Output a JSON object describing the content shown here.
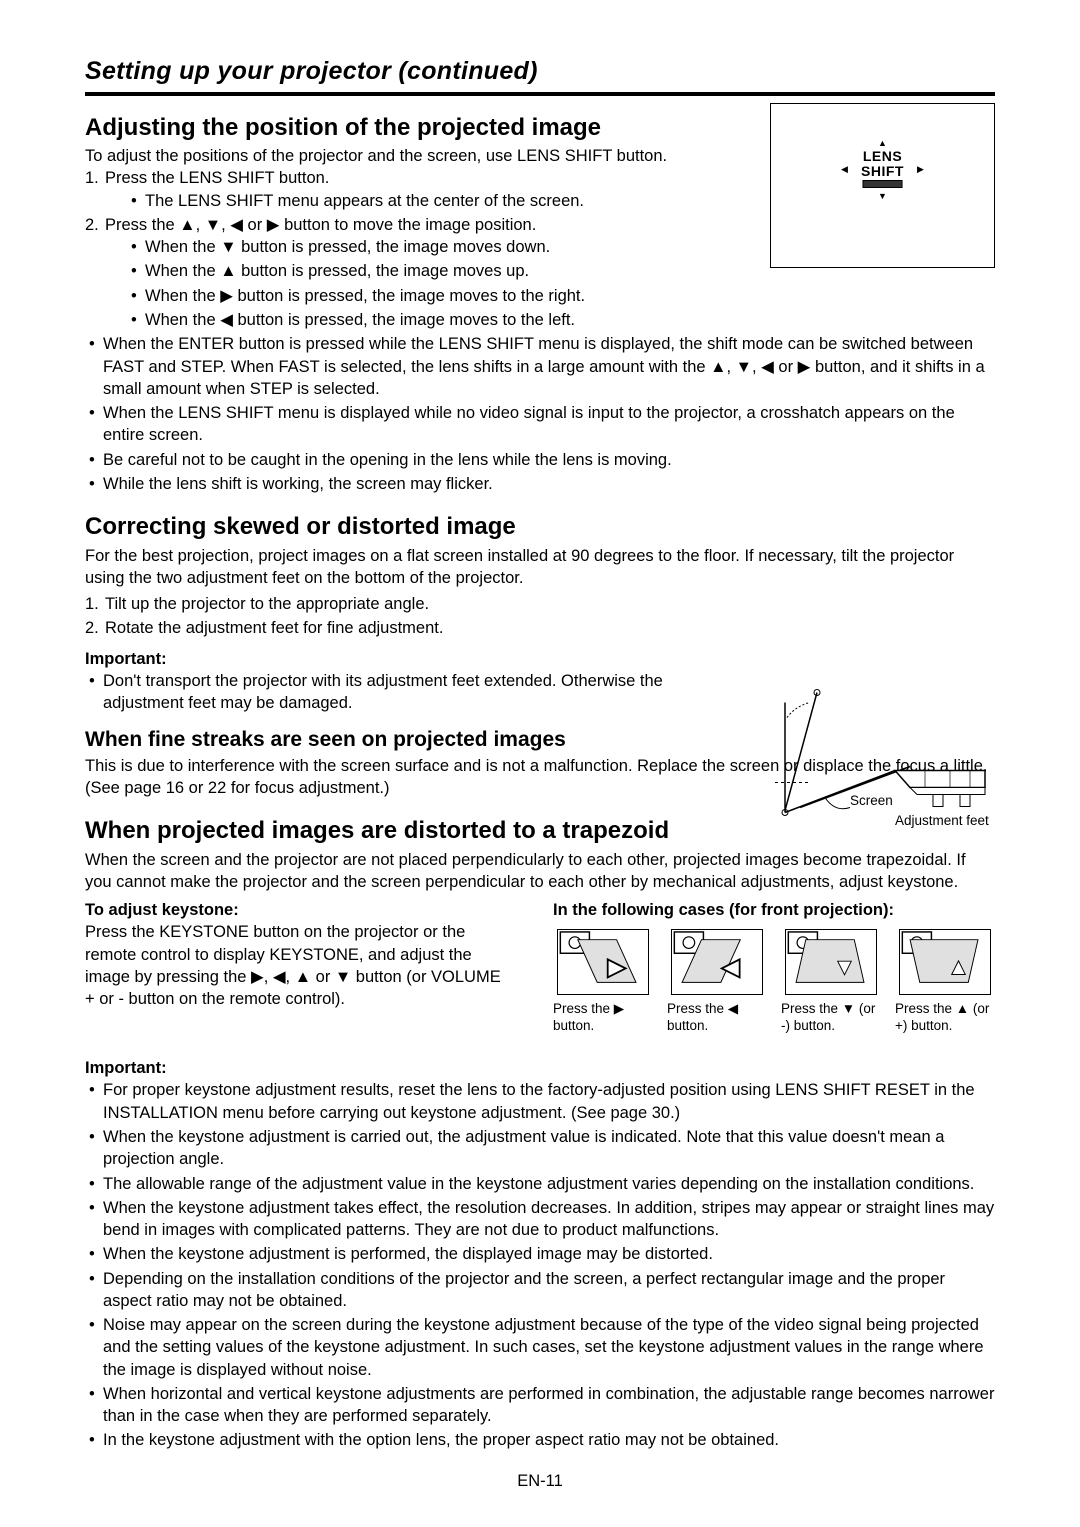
{
  "chapter_title": "Setting up your projector (continued)",
  "page_number": "EN-11",
  "sec1": {
    "title": "Adjusting the position of the projected image",
    "intro": "To adjust the positions of the projector and the screen, use LENS SHIFT button.",
    "step1": "Press the LENS SHIFT button.",
    "step1_sub": "The LENS SHIFT menu appears at the center of the screen.",
    "step2": "Press the ▲, ▼, ◀ or ▶ button to move the image position.",
    "step2_subs": [
      "When the ▼ button is pressed, the image moves down.",
      "When the ▲ button is pressed, the image moves up.",
      "When the ▶ button is pressed, the image moves to the right.",
      "When the ◀ button is pressed, the image moves to the left."
    ],
    "notes": [
      "When the ENTER button is pressed while the LENS SHIFT menu is displayed, the shift mode can be switched between FAST and STEP. When FAST is selected, the lens shifts in a large amount with the ▲, ▼, ◀ or ▶ button, and it shifts in a small amount when STEP is selected.",
      "When the LENS SHIFT menu is displayed while no video signal is input to the projector, a crosshatch appears on the entire screen.",
      "Be careful not to be caught in the opening in the lens while the lens is moving.",
      "While the lens shift is working, the screen may flicker."
    ],
    "lens_label_top": "LENS",
    "lens_label_bottom": "SHIFT"
  },
  "sec2": {
    "title": "Correcting skewed or distorted image",
    "intro": "For the best projection, project images on a flat screen installed at 90 degrees to the floor. If necessary, tilt the projector using the two adjustment feet on the bottom of the projector.",
    "step1": "Tilt up the projector to the appropriate angle.",
    "step2": "Rotate the adjustment feet for fine adjustment.",
    "important_label": "Important:",
    "important_item": "Don't transport the projector with its adjustment feet extended. Otherwise the adjustment feet may be damaged.",
    "feet_screen_label": "Screen",
    "feet_feet_label": "Adjustment feet"
  },
  "sec3": {
    "title": "When fine streaks are seen on projected images",
    "body": "This is due to interference with the screen surface and is not a malfunction. Replace the screen or displace the focus a little. (See page 16 or 22 for focus adjustment.)"
  },
  "sec4": {
    "title": "When projected images are distorted to a trapezoid",
    "intro": "When the screen and the projector are not placed perpendicularly to each other,  projected images become trapezoidal. If you cannot make the projector and the screen perpendicular to each other by mechanical adjustments, adjust keystone.",
    "left_h": "To adjust keystone:",
    "left_p": "Press the KEYSTONE button on the projector or the remote control to display KEYSTONE, and adjust the image by pressing the ▶, ◀, ▲ or ▼ button (or VOLUME + or - button on the remote control).",
    "right_h": "In the following cases (for front projection):",
    "keystone_captions": [
      "Press the ▶ button.",
      "Press the ◀ button.",
      "Press the ▼ (or -) button.",
      "Press the ▲ (or +) button."
    ],
    "important_label": "Important:",
    "important_items": [
      "For proper keystone adjustment results, reset the lens to the factory-adjusted position using LENS SHIFT RESET in the INSTALLATION menu before carrying out keystone adjustment. (See page 30.)",
      "When the keystone adjustment is carried out, the adjustment value is indicated. Note that this value doesn't mean a projection angle.",
      "The allowable range of the adjustment value in the keystone adjustment varies depending on the installation conditions.",
      "When the keystone adjustment takes effect, the resolution decreases. In addition, stripes may appear or straight lines may bend in images with complicated patterns. They are not due to product malfunctions.",
      "When the keystone adjustment is performed, the displayed image may be distorted.",
      "Depending on the installation conditions of the projector and the screen, a perfect rectangular image and the proper aspect ratio may not be obtained.",
      "Noise may appear on the screen during the keystone adjustment because of the type of the video signal being projected and the setting values of the keystone adjustment. In such cases, set the keystone adjustment values in the range where the image is displayed without noise.",
      "When horizontal and vertical keystone adjustments are performed in combination, the adjustable range becomes narrower than in the case when they are performed separately.",
      "In the keystone adjustment with the option lens, the proper aspect ratio may not be obtained."
    ]
  }
}
